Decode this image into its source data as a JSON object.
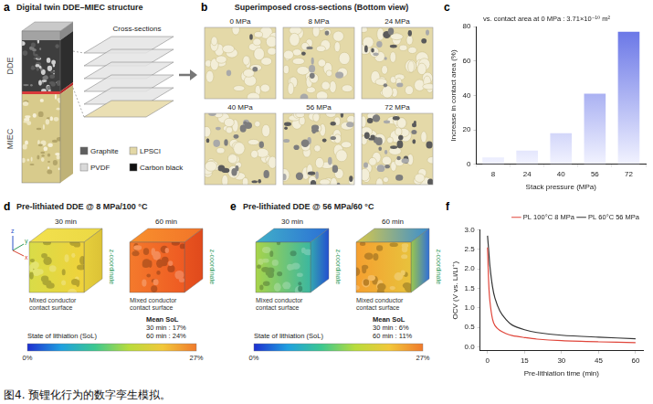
{
  "caption": "图4. 预锂化行为的数字孪生模拟。",
  "letters": [
    "a",
    "b",
    "c",
    "d",
    "e",
    "f"
  ],
  "panel_a": {
    "title": "Digital twin DDE–MIEC structure",
    "layers": [
      "DDE",
      "MIEC"
    ],
    "callout": "Cross-sections",
    "legend": [
      {
        "name": "Graphite",
        "color": "#5f5f5f"
      },
      {
        "name": "LPSCl",
        "color": "#e3d8a6"
      },
      {
        "name": "PVDF",
        "color": "#d9d9d9"
      },
      {
        "name": "Carbon black",
        "color": "#111111"
      }
    ]
  },
  "panel_b": {
    "title": "Superimposed cross-sections (Bottom view)",
    "tiles": [
      "0 MPa",
      "8 MPa",
      "24 MPa",
      "40 MPa",
      "56 MPa",
      "72 MPa"
    ]
  },
  "chart_data": [
    {
      "type": "bar",
      "title": "vs. contact area at 0 MPa : 3.71×10⁻¹⁰ m²",
      "x_label": "Stack pressure (MPa)",
      "y_label": "Increase in contact area (%)",
      "categories": [
        "8",
        "24",
        "40",
        "56",
        "72"
      ],
      "values": [
        4,
        8,
        18,
        41,
        77
      ],
      "color": "#6673e6",
      "ylim": [
        0,
        80
      ],
      "yticks": [
        0,
        20,
        40,
        60,
        80
      ],
      "grid": false
    },
    {
      "type": "line",
      "x_label": "Pre-lithiation time (min)",
      "y_label": "OCV (V vs. Li/Li⁺)",
      "x": [
        0,
        0.5,
        1,
        2,
        3,
        5,
        7.5,
        10,
        15,
        20,
        30,
        45,
        60
      ],
      "series": [
        {
          "name": "PL 100°C 8 MPa",
          "color": "#e0453a",
          "values": [
            2.55,
            1.6,
            1.15,
            0.72,
            0.55,
            0.42,
            0.34,
            0.29,
            0.24,
            0.2,
            0.16,
            0.13,
            0.11
          ]
        },
        {
          "name": "PL 60°C 56 MPa",
          "color": "#333333",
          "values": [
            2.85,
            2.45,
            2.05,
            1.55,
            1.25,
            0.92,
            0.7,
            0.56,
            0.44,
            0.37,
            0.3,
            0.25,
            0.21
          ]
        }
      ],
      "xlim": [
        -3,
        63
      ],
      "xticks": [
        0,
        15,
        30,
        45,
        60
      ],
      "ylim": [
        -0.1,
        3.0
      ],
      "yticks": [
        {
          "value": 0,
          "label": "0.0"
        },
        0.5,
        {
          "value": 1,
          "label": "1.0"
        },
        1.5,
        {
          "value": 2,
          "label": "2.0"
        },
        2.5,
        {
          "value": 3,
          "label": "3.0"
        }
      ],
      "grid": false,
      "legend": "top"
    }
  ],
  "panel_d": {
    "title": "Pre-lithiated DDE @ 8 MPa/100 °C",
    "times": [
      "30 min",
      "60 min"
    ],
    "surface_label": "Mixed conductor contact surface",
    "axis_label": "z-coordinate",
    "triad": [
      "z",
      "y",
      "x"
    ],
    "mean_title": "Mean SoL",
    "mean_lines": [
      "30 min : 17%",
      "60 min : 24%"
    ],
    "colorbar": {
      "title": "State of lithiation (SoL)",
      "min_label": "0%",
      "max_label": "27%"
    }
  },
  "panel_e": {
    "title": "Pre-lithiated DDE @ 56 MPa/60 °C",
    "times": [
      "30 min",
      "60 min"
    ],
    "surface_label": "Mixed conductor contact surface",
    "axis_label": "z-coordinate",
    "mean_title": "Mean SoL",
    "mean_lines": [
      "30 min : 6%",
      "60 min : 11%"
    ],
    "colorbar": {
      "title": "State of lithiation (SoL)",
      "min_label": "0%",
      "max_label": "27%"
    }
  }
}
